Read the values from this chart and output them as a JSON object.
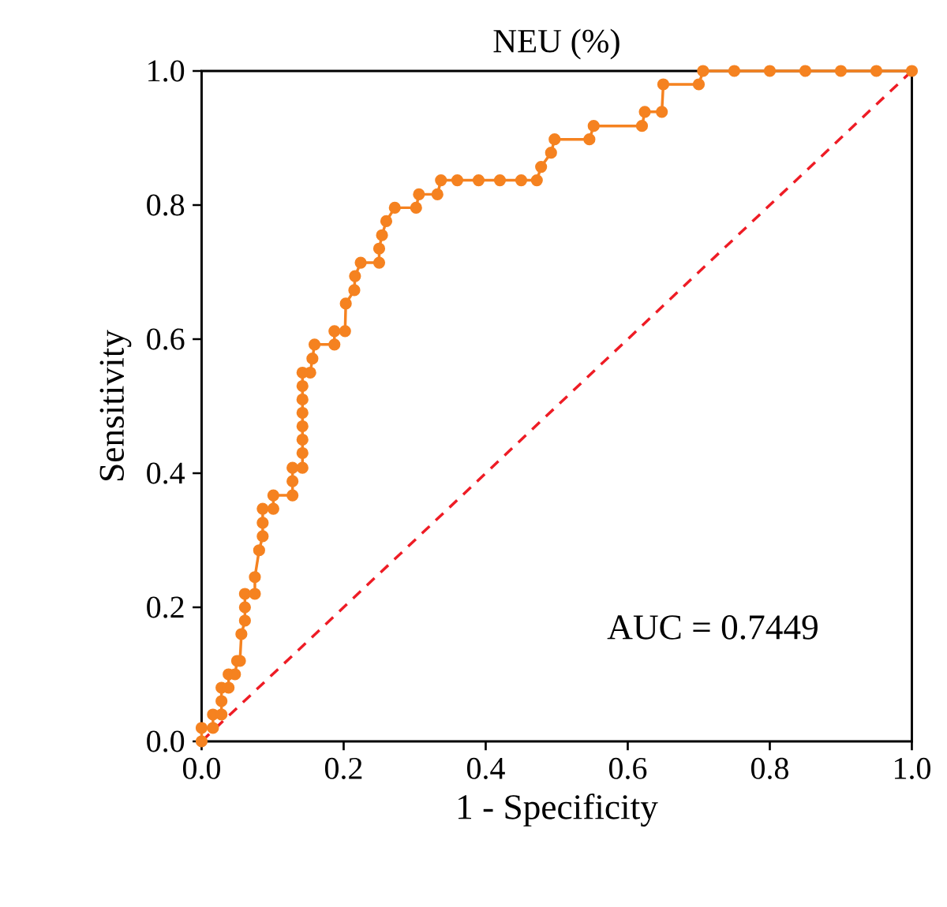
{
  "chart_data": {
    "type": "line",
    "title": "NEU (%)",
    "xlabel": "1 - Specificity",
    "ylabel": "Sensitivity",
    "xlim": [
      0,
      1
    ],
    "ylim": [
      0,
      1
    ],
    "xticks": [
      {
        "value": 0,
        "label": "0.0"
      },
      {
        "value": 0.2,
        "label": "0.2"
      },
      {
        "value": 0.4,
        "label": "0.4"
      },
      {
        "value": 0.6,
        "label": "0.6"
      },
      {
        "value": 0.8,
        "label": "0.8"
      },
      {
        "value": 1,
        "label": "1.0"
      }
    ],
    "yticks": [
      {
        "value": 0,
        "label": "0.0"
      },
      {
        "value": 0.2,
        "label": "0.2"
      },
      {
        "value": 0.4,
        "label": "0.4"
      },
      {
        "value": 0.6,
        "label": "0.6"
      },
      {
        "value": 0.8,
        "label": "0.8"
      },
      {
        "value": 1,
        "label": "1.0"
      }
    ],
    "grid": false,
    "annotations": [
      "AUC = 0.7449"
    ],
    "series": [
      {
        "color": "#f58220",
        "marker": "circle",
        "line_style": "solid",
        "x": [
          0,
          0,
          0.016,
          0.016,
          0.028,
          0.028,
          0.028,
          0.038,
          0.038,
          0.047,
          0.05,
          0.054,
          0.056,
          0.061,
          0.061,
          0.061,
          0.075,
          0.075,
          0.081,
          0.086,
          0.086,
          0.086,
          0.101,
          0.101,
          0.128,
          0.128,
          0.128,
          0.142,
          0.142,
          0.142,
          0.142,
          0.142,
          0.142,
          0.142,
          0.142,
          0.153,
          0.156,
          0.159,
          0.187,
          0.187,
          0.202,
          0.203,
          0.215,
          0.216,
          0.224,
          0.25,
          0.25,
          0.254,
          0.26,
          0.272,
          0.302,
          0.306,
          0.332,
          0.337,
          0.36,
          0.39,
          0.42,
          0.45,
          0.472,
          0.478,
          0.492,
          0.497,
          0.546,
          0.552,
          0.62,
          0.624,
          0.648,
          0.65,
          0.7,
          0.706,
          0.75,
          0.8,
          0.85,
          0.9,
          0.95,
          1.0
        ],
        "values": [
          0,
          0.02,
          0.02,
          0.04,
          0.04,
          0.06,
          0.08,
          0.08,
          0.1,
          0.1,
          0.12,
          0.12,
          0.16,
          0.18,
          0.2,
          0.22,
          0.22,
          0.245,
          0.285,
          0.306,
          0.326,
          0.347,
          0.347,
          0.367,
          0.367,
          0.388,
          0.408,
          0.408,
          0.43,
          0.45,
          0.47,
          0.49,
          0.51,
          0.53,
          0.55,
          0.55,
          0.571,
          0.592,
          0.592,
          0.612,
          0.612,
          0.653,
          0.673,
          0.694,
          0.714,
          0.714,
          0.735,
          0.755,
          0.776,
          0.796,
          0.796,
          0.816,
          0.816,
          0.837,
          0.837,
          0.837,
          0.837,
          0.837,
          0.837,
          0.857,
          0.878,
          0.898,
          0.898,
          0.918,
          0.918,
          0.939,
          0.939,
          0.98,
          0.98,
          1.0,
          1.0,
          1.0,
          1.0,
          1.0,
          1.0,
          1.0
        ]
      },
      {
        "color": "#ee1c25",
        "marker": "none",
        "line_style": "dashed",
        "x": [
          0,
          1
        ],
        "values": [
          0,
          1
        ]
      }
    ]
  }
}
